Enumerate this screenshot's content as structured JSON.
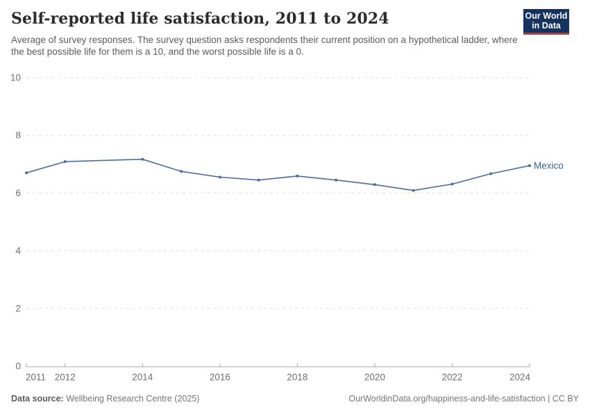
{
  "header": {
    "title": "Self-reported life satisfaction, 2011 to 2024",
    "subtitle": "Average of survey responses. The survey question asks respondents their current position on a hypothetical ladder, where the best possible life for them is a 10, and the worst possible life is a 0."
  },
  "logo": {
    "line1": "Our World",
    "line2": "in Data",
    "bg_color": "#153360",
    "stripe_color": "#D0311F"
  },
  "chart_data": {
    "type": "line",
    "title": "Self-reported life satisfaction, 2011 to 2024",
    "xlabel": "",
    "ylabel": "",
    "ylim": [
      0,
      10
    ],
    "x_range": [
      2011,
      2024
    ],
    "y_ticks": [
      0,
      2,
      4,
      6,
      8,
      10
    ],
    "x_ticks": [
      2011,
      2012,
      2014,
      2016,
      2018,
      2020,
      2022,
      2024
    ],
    "grid": "horizontal-dashed",
    "legend_position": "end-of-line-label",
    "series": [
      {
        "name": "Mexico",
        "color": "#4C6A9C",
        "label_color": "#3A5C8F",
        "points": [
          {
            "year": 2011,
            "value": 6.7
          },
          {
            "year": 2012,
            "value": 7.09
          },
          {
            "year": 2014,
            "value": 7.17
          },
          {
            "year": 2015,
            "value": 6.75
          },
          {
            "year": 2016,
            "value": 6.55
          },
          {
            "year": 2017,
            "value": 6.45
          },
          {
            "year": 2018,
            "value": 6.59
          },
          {
            "year": 2019,
            "value": 6.45
          },
          {
            "year": 2020,
            "value": 6.29
          },
          {
            "year": 2021,
            "value": 6.09
          },
          {
            "year": 2022,
            "value": 6.31
          },
          {
            "year": 2023,
            "value": 6.67
          },
          {
            "year": 2024,
            "value": 6.95
          }
        ]
      }
    ]
  },
  "colors": {
    "gridline": "#dddddd",
    "axis": "#a8a8a8",
    "tick_label": "#6e6e6e"
  },
  "footer": {
    "datasource_label": "Data source:",
    "datasource_value": " Wellbeing Research Centre (2025)",
    "right_text": "OurWorldinData.org/happiness-and-life-satisfaction | CC BY"
  }
}
